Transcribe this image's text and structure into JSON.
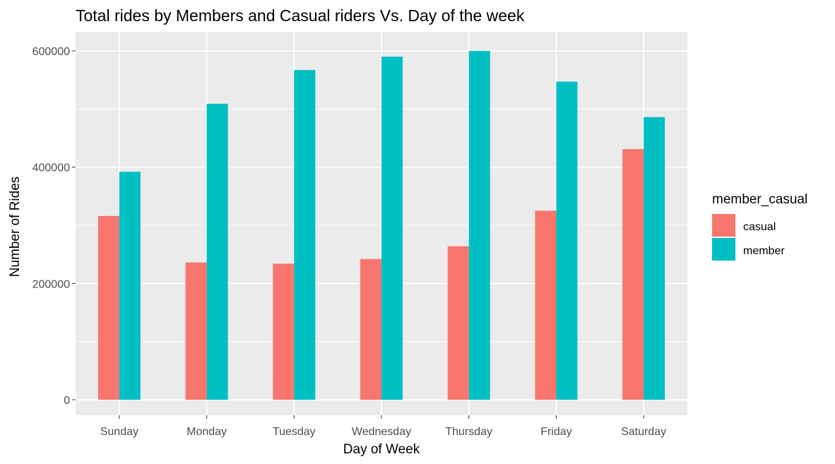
{
  "chart_data": {
    "type": "bar",
    "title": "Total rides by Members and Casual riders Vs. Day of the week",
    "xlabel": "Day of Week",
    "ylabel": "Number of Rides",
    "categories": [
      "Sunday",
      "Monday",
      "Tuesday",
      "Wednesday",
      "Thursday",
      "Friday",
      "Saturday"
    ],
    "series": [
      {
        "name": "casual",
        "color": "#F8766D",
        "values": [
          316000,
          236000,
          234000,
          242000,
          264000,
          325000,
          431000
        ]
      },
      {
        "name": "member",
        "color": "#00BFC4",
        "values": [
          392000,
          509000,
          567000,
          590000,
          600000,
          547000,
          486000
        ]
      }
    ],
    "ylim": [
      0,
      600000
    ],
    "yticks": [
      0,
      200000,
      400000,
      600000
    ],
    "ytick_labels": [
      "0",
      "200000",
      "400000",
      "600000"
    ],
    "grid": true,
    "legend": {
      "title": "member_casual",
      "position": "right"
    },
    "background_color": "#EBEBEB",
    "grid_color": "#FFFFFF"
  }
}
